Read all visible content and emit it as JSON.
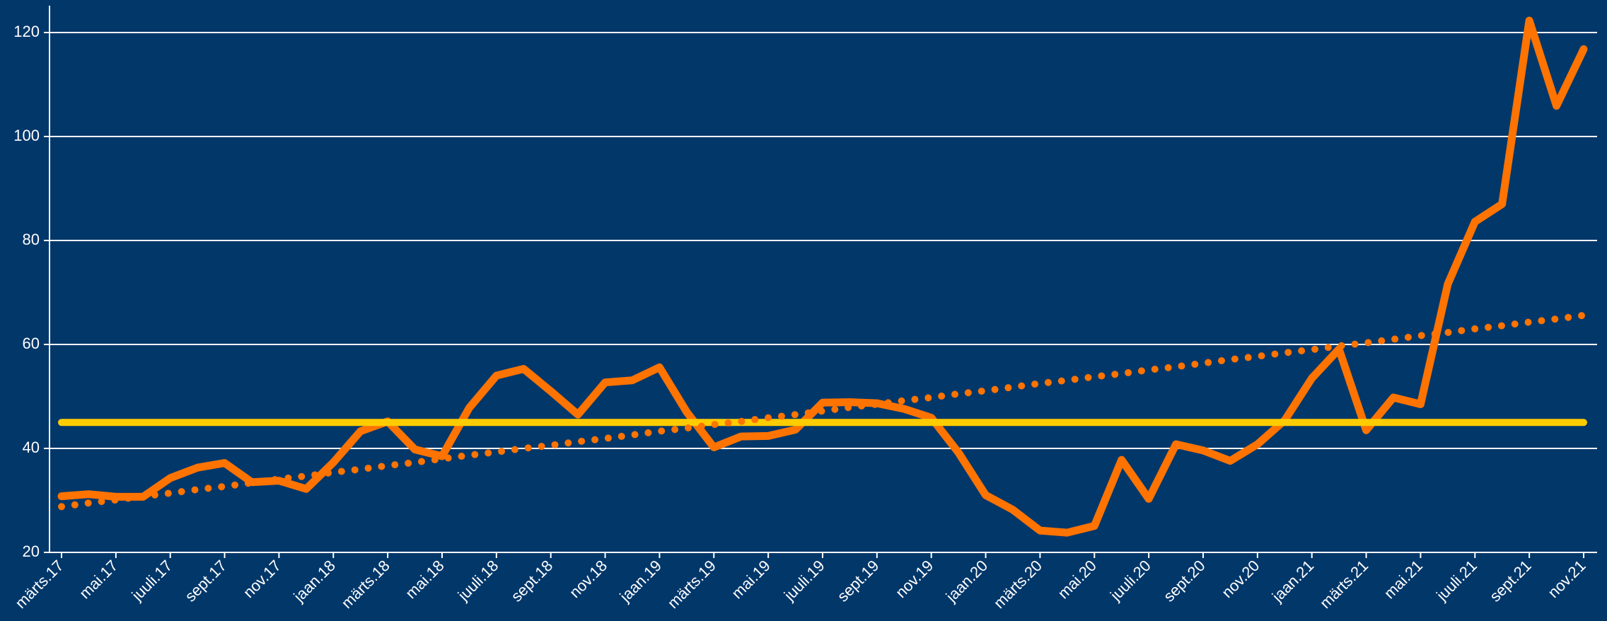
{
  "chart_data": {
    "type": "line",
    "categories": [
      "märts.17",
      null,
      "mai.17",
      null,
      "juuli.17",
      null,
      "sept.17",
      null,
      "nov.17",
      null,
      "jaan.18",
      null,
      "märts.18",
      null,
      "mai.18",
      null,
      "juuli.18",
      null,
      "sept.18",
      null,
      "nov.18",
      null,
      "jaan.19",
      null,
      "märts.19",
      null,
      "mai.19",
      null,
      "juuli.19",
      null,
      "sept.19",
      null,
      "nov.19",
      null,
      "jaan.20",
      null,
      "märts.20",
      null,
      "mai.20",
      null,
      "juuli.20",
      null,
      "sept.20",
      null,
      "nov.20",
      null,
      "jaan.21",
      null,
      "märts.21",
      null,
      "mai.21",
      null,
      "juuli.21",
      null,
      "sept.21",
      null,
      "nov.21"
    ],
    "series": [
      {
        "color": "#ff7300",
        "style": "solid",
        "values": [
          30.8,
          31.2,
          30.7,
          30.7,
          34.3,
          36.3,
          37.2,
          33.5,
          33.8,
          32.2,
          37.3,
          43.3,
          45.2,
          39.8,
          38.5,
          47.8,
          54,
          55.3,
          51,
          46.5,
          52.7,
          53.1,
          55.6,
          47,
          40.2,
          42.3,
          42.4,
          43.6,
          48.8,
          48.9,
          48.7,
          47.6,
          45.9,
          39.2,
          31,
          28.2,
          24.2,
          23.8,
          25.1,
          37.8,
          30.3,
          40.8,
          39.6,
          37.6,
          40.8,
          45.4,
          53.5,
          59.1,
          43.5,
          49.8,
          48.5,
          71.6,
          83.6,
          87,
          122.3,
          105.9,
          116.8
        ]
      },
      {
        "color": "#ffcc00",
        "style": "solid",
        "values": [
          45,
          45,
          45,
          45,
          45,
          45,
          45,
          45,
          45,
          45,
          45,
          45,
          45,
          45,
          45,
          45,
          45,
          45,
          45,
          45,
          45,
          45,
          45,
          45,
          45,
          45,
          45,
          45,
          45,
          45,
          45,
          45,
          45,
          45,
          45,
          45,
          45,
          45,
          45,
          45,
          45,
          45,
          45,
          45,
          45,
          45,
          45,
          45,
          45,
          45,
          45,
          45,
          45,
          45,
          45,
          45,
          45
        ]
      },
      {
        "color": "#ff7300",
        "style": "dotted",
        "values": [
          28.8,
          29.5,
          30.1,
          30.8,
          31.4,
          32.1,
          32.7,
          33.4,
          34.1,
          34.7,
          35.4,
          36.0,
          36.7,
          37.3,
          38.0,
          38.7,
          39.3,
          40.0,
          40.6,
          41.3,
          41.9,
          42.6,
          43.3,
          43.9,
          44.6,
          45.2,
          45.9,
          46.5,
          47.2,
          47.9,
          48.5,
          49.2,
          49.8,
          50.5,
          51.1,
          51.8,
          52.5,
          53.1,
          53.8,
          54.4,
          55.1,
          55.7,
          56.4,
          57.1,
          57.7,
          58.4,
          59.0,
          59.7,
          60.3,
          61.0,
          61.7,
          62.3,
          63.0,
          63.6,
          64.3,
          64.9,
          65.6
        ]
      }
    ],
    "ylim": [
      20,
      120
    ],
    "yticks": [
      20,
      40,
      60,
      80,
      100,
      120
    ],
    "grid": true
  }
}
